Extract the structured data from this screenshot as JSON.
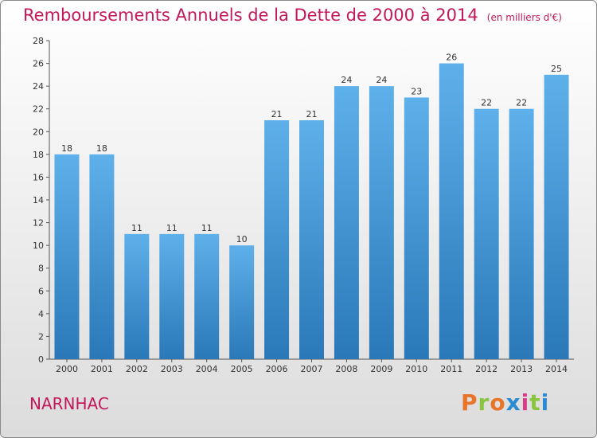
{
  "title": "Remboursements Annuels de la Dette de 2000 à 2014",
  "unit_note": "(en milliers d'€)",
  "commune": "NARNHAC",
  "logo": "Proxiti",
  "colors": {
    "title": "#c2185b",
    "bar_top": "#5eb0ea",
    "bar_bottom": "#2a78b8",
    "logo_letters": [
      "#e8742a",
      "#8bc43f",
      "#e8742a",
      "#2a8ad4",
      "#d93b8a",
      "#8bc43f",
      "#2a8ad4"
    ]
  },
  "chart_data": {
    "type": "bar",
    "categories": [
      "2000",
      "2001",
      "2002",
      "2003",
      "2004",
      "2005",
      "2006",
      "2007",
      "2008",
      "2009",
      "2010",
      "2011",
      "2012",
      "2013",
      "2014"
    ],
    "values": [
      18,
      18,
      11,
      11,
      11,
      10,
      21,
      21,
      24,
      24,
      23,
      26,
      22,
      22,
      25
    ],
    "title": "Remboursements Annuels de la Dette de 2000 à 2014",
    "ylim": [
      0,
      28
    ],
    "yticks": [
      0,
      2,
      4,
      6,
      8,
      10,
      12,
      14,
      16,
      18,
      20,
      22,
      24,
      26,
      28
    ],
    "grid": false,
    "data_labels": true
  }
}
